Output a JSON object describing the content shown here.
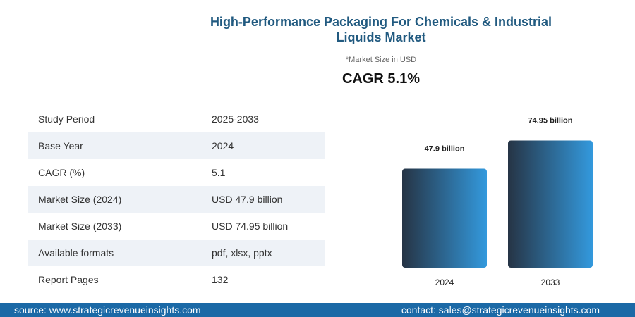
{
  "header": {
    "title": "High-Performance Packaging For Chemicals & Industrial Liquids Market",
    "subtitle": "*Market Size in USD",
    "cagr": "CAGR 5.1%"
  },
  "table": {
    "rows": [
      [
        "Study Period",
        "2025-2033"
      ],
      [
        "Base Year",
        "2024"
      ],
      [
        "CAGR (%)",
        "5.1"
      ],
      [
        "Market Size (2024)",
        "USD 47.9 billion"
      ],
      [
        "Market Size (2033)",
        "USD 74.95 billion"
      ],
      [
        "Available formats",
        "pdf, xlsx, pptx"
      ],
      [
        "Report Pages",
        "132"
      ]
    ]
  },
  "chart_data": {
    "type": "bar",
    "categories": [
      "2024",
      "2033"
    ],
    "values": [
      47.9,
      74.95
    ],
    "value_labels": [
      "47.9 billion",
      "74.95 billion"
    ],
    "colors": [
      "#263445",
      "#3399dd"
    ],
    "ylim": [
      -47,
      80
    ]
  },
  "footer": {
    "source": "source: www.strategicrevenueinsights.com",
    "contact": "contact: sales@strategicrevenueinsights.com"
  }
}
